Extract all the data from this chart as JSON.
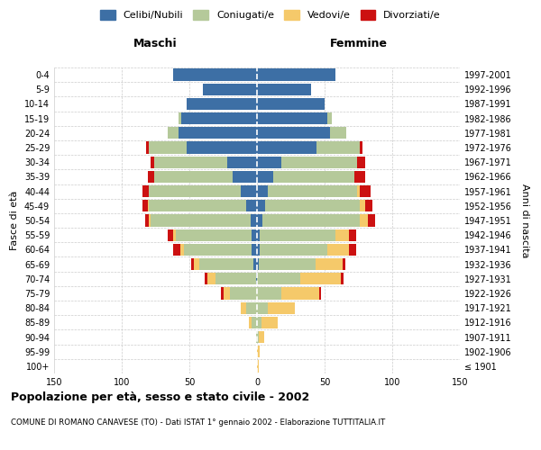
{
  "age_groups": [
    "100+",
    "95-99",
    "90-94",
    "85-89",
    "80-84",
    "75-79",
    "70-74",
    "65-69",
    "60-64",
    "55-59",
    "50-54",
    "45-49",
    "40-44",
    "35-39",
    "30-34",
    "25-29",
    "20-24",
    "15-19",
    "10-14",
    "5-9",
    "0-4"
  ],
  "birth_years": [
    "≤ 1901",
    "1902-1906",
    "1907-1911",
    "1912-1916",
    "1917-1921",
    "1922-1926",
    "1927-1931",
    "1932-1936",
    "1937-1941",
    "1942-1946",
    "1947-1951",
    "1952-1956",
    "1957-1961",
    "1962-1966",
    "1967-1971",
    "1972-1976",
    "1977-1981",
    "1982-1986",
    "1987-1991",
    "1992-1996",
    "1997-2001"
  ],
  "male_celibi": [
    0,
    0,
    0,
    0,
    0,
    0,
    1,
    3,
    4,
    4,
    5,
    8,
    12,
    18,
    22,
    52,
    58,
    56,
    52,
    40,
    62
  ],
  "male_coniugati": [
    0,
    0,
    1,
    4,
    8,
    20,
    30,
    40,
    50,
    56,
    74,
    72,
    68,
    58,
    54,
    28,
    8,
    2,
    0,
    0,
    0
  ],
  "male_vedovi": [
    0,
    0,
    0,
    2,
    4,
    5,
    6,
    4,
    3,
    2,
    1,
    1,
    0,
    0,
    0,
    0,
    0,
    0,
    0,
    0,
    0
  ],
  "male_divorziati": [
    0,
    0,
    0,
    0,
    0,
    2,
    2,
    2,
    5,
    4,
    3,
    4,
    5,
    5,
    3,
    2,
    0,
    0,
    0,
    0,
    0
  ],
  "female_celibi": [
    0,
    0,
    0,
    0,
    0,
    0,
    0,
    1,
    2,
    2,
    4,
    6,
    8,
    12,
    18,
    44,
    54,
    52,
    50,
    40,
    58
  ],
  "female_coniugati": [
    0,
    0,
    1,
    3,
    8,
    18,
    32,
    42,
    50,
    56,
    72,
    70,
    66,
    60,
    56,
    32,
    12,
    3,
    0,
    0,
    0
  ],
  "female_vedovi": [
    1,
    2,
    4,
    12,
    20,
    28,
    30,
    20,
    16,
    10,
    6,
    4,
    2,
    0,
    0,
    0,
    0,
    0,
    0,
    0,
    0
  ],
  "female_divorziati": [
    0,
    0,
    0,
    0,
    0,
    1,
    2,
    2,
    5,
    5,
    5,
    5,
    8,
    8,
    6,
    2,
    0,
    0,
    0,
    0,
    0
  ],
  "colors": {
    "celibi": "#3d6fa5",
    "coniugati": "#b5c99a",
    "vedovi": "#f5c96a",
    "divorziati": "#cc1111"
  },
  "xlim": 150,
  "title": "Popolazione per età, sesso e stato civile - 2002",
  "subtitle": "COMUNE DI ROMANO CANAVESE (TO) - Dati ISTAT 1° gennaio 2002 - Elaborazione TUTTITALIA.IT",
  "ylabel": "Fasce di età",
  "ylabel_right": "Anni di nascita",
  "background_color": "#ffffff",
  "grid_color": "#cccccc"
}
